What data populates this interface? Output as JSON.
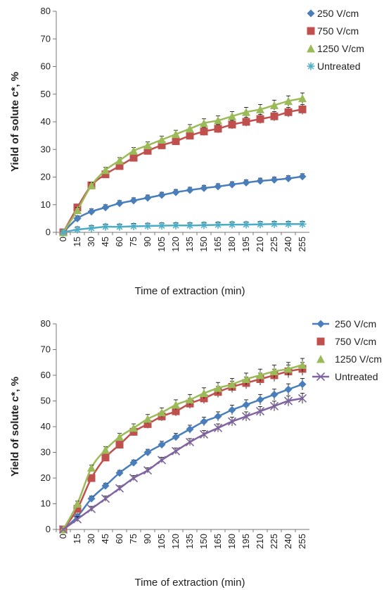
{
  "chart_data": [
    {
      "type": "line",
      "ylabel": "Yield of solute c*, %",
      "xlabel": "Time of extraction (min)",
      "ylim": [
        0,
        80
      ],
      "yticks": [
        0,
        10,
        20,
        30,
        40,
        50,
        60,
        70,
        80
      ],
      "x": [
        0,
        15,
        30,
        45,
        60,
        75,
        90,
        105,
        120,
        135,
        150,
        165,
        180,
        195,
        210,
        225,
        240,
        255
      ],
      "legend_position": "top-right",
      "series": [
        {
          "name": "250 V/cm",
          "color": "#4a7ebb",
          "marker": "diamond",
          "values": [
            0,
            5,
            7.5,
            9,
            10.5,
            11.5,
            12.5,
            13.5,
            14.5,
            15.3,
            16,
            16.6,
            17.3,
            18,
            18.6,
            19,
            19.5,
            20.2
          ]
        },
        {
          "name": "750 V/cm",
          "color": "#c0504d",
          "marker": "square",
          "values": [
            0,
            9,
            17,
            21,
            24,
            27,
            29.5,
            31.5,
            33,
            35,
            36.5,
            37.5,
            39,
            40,
            41,
            42,
            43.5,
            44.5
          ]
        },
        {
          "name": "1250 V/cm",
          "color": "#9bbb59",
          "marker": "triangle",
          "values": [
            0,
            8,
            17,
            22.5,
            26,
            29.5,
            31.5,
            33.5,
            35.5,
            37.5,
            39.5,
            40.5,
            42,
            43.5,
            44.5,
            46,
            47.5,
            48.5
          ]
        },
        {
          "name": "Untreated",
          "color": "#4bacc6",
          "marker": "asterisk",
          "values": [
            0,
            1,
            1.5,
            2,
            2,
            2.2,
            2.3,
            2.4,
            2.5,
            2.5,
            2.6,
            2.7,
            2.8,
            2.8,
            2.9,
            3,
            3,
            3
          ]
        }
      ]
    },
    {
      "type": "line",
      "ylabel": "Yield of solute c*, %",
      "xlabel": "Time of extraction (min)",
      "ylim": [
        0,
        80
      ],
      "yticks": [
        0,
        10,
        20,
        30,
        40,
        50,
        60,
        70,
        80
      ],
      "x": [
        0,
        15,
        30,
        45,
        60,
        75,
        90,
        105,
        120,
        135,
        150,
        165,
        180,
        195,
        210,
        225,
        240,
        255
      ],
      "legend_position": "top-right",
      "series": [
        {
          "name": "250 V/cm",
          "color": "#4a7ebb",
          "marker": "diamond",
          "values": [
            0,
            5,
            12,
            17,
            22,
            26,
            30,
            33,
            36,
            39,
            42,
            44,
            46.5,
            48.5,
            50.5,
            52.5,
            54.5,
            56.5
          ]
        },
        {
          "name": "750 V/cm",
          "color": "#c0504d",
          "marker": "square",
          "values": [
            0,
            8,
            20,
            28,
            33,
            38,
            41,
            44,
            46,
            49,
            51,
            53.5,
            55.5,
            57,
            58.5,
            60,
            61.5,
            62.5
          ]
        },
        {
          "name": "1250 V/cm",
          "color": "#9bbb59",
          "marker": "triangle",
          "values": [
            0,
            10,
            24,
            31,
            36,
            39.5,
            43,
            45.5,
            48.5,
            50.5,
            53,
            55,
            56.5,
            58.5,
            60,
            61.5,
            62.5,
            64
          ]
        },
        {
          "name": "Untreated",
          "color": "#8064a2",
          "marker": "x",
          "values": [
            0,
            4,
            8,
            12,
            16,
            20,
            23,
            27,
            30.5,
            34,
            37,
            39.5,
            42,
            44,
            46,
            48,
            50,
            51
          ]
        }
      ]
    }
  ]
}
